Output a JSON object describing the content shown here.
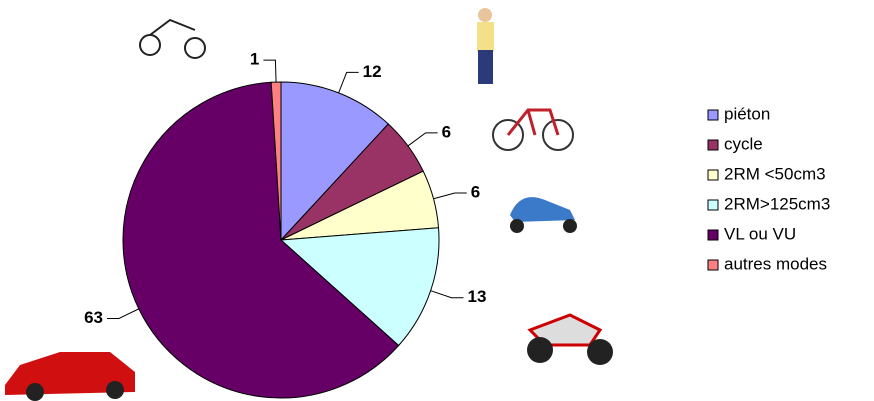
{
  "chart_data": {
    "type": "pie",
    "categories": [
      "piéton",
      "cycle",
      "2RM <50cm3",
      "2RM>125cm3",
      "VL ou VU",
      "autres modes"
    ],
    "values": [
      12,
      6,
      6,
      13,
      63,
      1
    ],
    "colors": [
      "#9999ff",
      "#993366",
      "#ffffcc",
      "#ccffff",
      "#660066",
      "#ff8080"
    ],
    "legend": "right"
  }
}
